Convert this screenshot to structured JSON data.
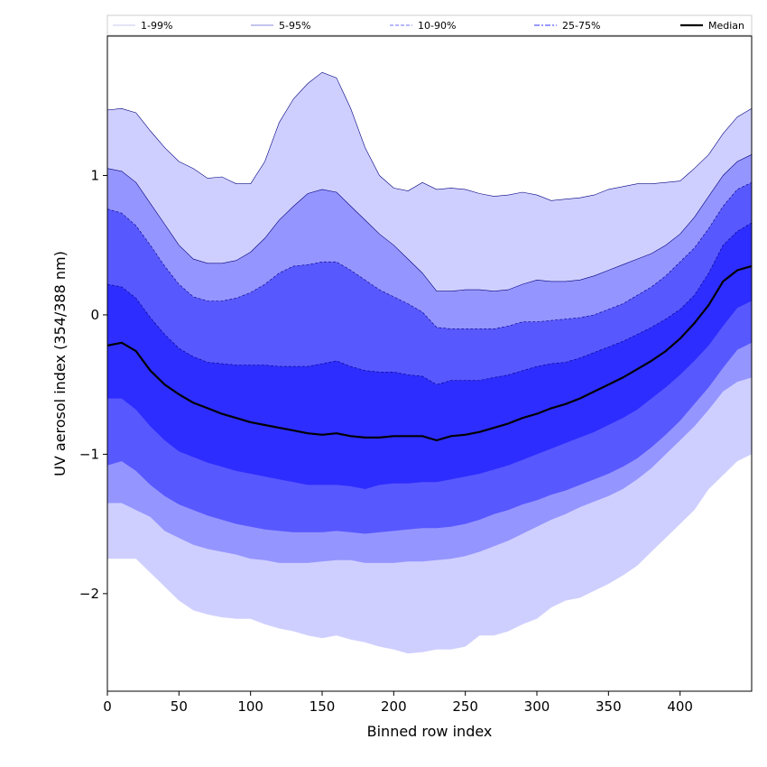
{
  "chart_data": {
    "type": "area",
    "title": "",
    "xlabel": "Binned row index",
    "ylabel": "UV aerosol index (354/388 nm)",
    "xlim": [
      0,
      450
    ],
    "ylim": [
      -2.7,
      2.0
    ],
    "xticks": [
      0,
      50,
      100,
      150,
      200,
      250,
      300,
      350,
      400
    ],
    "yticks": [
      -2,
      -1,
      0,
      1
    ],
    "ytick_labels": [
      "−2",
      "−1",
      "0",
      "1"
    ],
    "grid": false,
    "legend": {
      "placement": "top, above plot",
      "entries": [
        {
          "label": "1-99%",
          "color": "#cfcfff",
          "style": "solid-thin"
        },
        {
          "label": "5-95%",
          "color": "#9a9aff",
          "style": "solid-thin"
        },
        {
          "label": "10-90%",
          "color": "#7070ff",
          "style": "dashed"
        },
        {
          "label": "25-75%",
          "color": "#3030ff",
          "style": "dashdot"
        },
        {
          "label": "Median",
          "color": "#000000",
          "style": "solid-thick"
        }
      ]
    },
    "x": [
      0,
      10,
      20,
      30,
      40,
      50,
      60,
      70,
      80,
      90,
      100,
      110,
      120,
      130,
      140,
      150,
      160,
      170,
      180,
      190,
      200,
      210,
      220,
      230,
      240,
      250,
      260,
      270,
      280,
      290,
      300,
      310,
      320,
      330,
      340,
      350,
      360,
      370,
      380,
      390,
      400,
      410,
      420,
      430,
      440,
      450
    ],
    "bands": [
      {
        "name": "1-99%",
        "color": "#cfcfff",
        "upper": [
          1.47,
          1.48,
          1.45,
          1.32,
          1.2,
          1.1,
          1.05,
          0.98,
          0.99,
          0.94,
          0.94,
          1.1,
          1.38,
          1.55,
          1.66,
          1.74,
          1.7,
          1.48,
          1.2,
          1.0,
          0.91,
          0.89,
          0.95,
          0.9,
          0.91,
          0.9,
          0.87,
          0.85,
          0.86,
          0.88,
          0.86,
          0.82,
          0.83,
          0.84,
          0.86,
          0.9,
          0.92,
          0.94,
          0.94,
          0.95,
          0.96,
          1.05,
          1.15,
          1.3,
          1.42,
          1.48
        ],
        "lower": [
          -1.75,
          -1.75,
          -1.75,
          -1.85,
          -1.95,
          -2.05,
          -2.12,
          -2.15,
          -2.17,
          -2.18,
          -2.18,
          -2.22,
          -2.25,
          -2.27,
          -2.3,
          -2.32,
          -2.3,
          -2.33,
          -2.35,
          -2.38,
          -2.4,
          -2.43,
          -2.42,
          -2.4,
          -2.4,
          -2.38,
          -2.3,
          -2.3,
          -2.27,
          -2.22,
          -2.18,
          -2.1,
          -2.05,
          -2.03,
          -1.98,
          -1.93,
          -1.87,
          -1.8,
          -1.7,
          -1.6,
          -1.5,
          -1.4,
          -1.25,
          -1.15,
          -1.05,
          -1.0
        ]
      },
      {
        "name": "5-95%",
        "color": "#9595ff",
        "upper": [
          1.05,
          1.03,
          0.95,
          0.8,
          0.65,
          0.5,
          0.4,
          0.37,
          0.37,
          0.39,
          0.45,
          0.55,
          0.68,
          0.78,
          0.87,
          0.9,
          0.88,
          0.78,
          0.68,
          0.58,
          0.5,
          0.4,
          0.3,
          0.17,
          0.17,
          0.18,
          0.18,
          0.17,
          0.18,
          0.22,
          0.25,
          0.24,
          0.24,
          0.25,
          0.28,
          0.32,
          0.36,
          0.4,
          0.44,
          0.5,
          0.58,
          0.7,
          0.85,
          1.0,
          1.1,
          1.15
        ],
        "lower": [
          -1.35,
          -1.35,
          -1.4,
          -1.45,
          -1.55,
          -1.6,
          -1.65,
          -1.68,
          -1.7,
          -1.72,
          -1.75,
          -1.76,
          -1.78,
          -1.78,
          -1.78,
          -1.77,
          -1.76,
          -1.76,
          -1.78,
          -1.78,
          -1.78,
          -1.77,
          -1.77,
          -1.76,
          -1.75,
          -1.73,
          -1.7,
          -1.66,
          -1.62,
          -1.57,
          -1.52,
          -1.47,
          -1.43,
          -1.38,
          -1.34,
          -1.3,
          -1.25,
          -1.18,
          -1.1,
          -1.0,
          -0.9,
          -0.8,
          -0.68,
          -0.55,
          -0.48,
          -0.45
        ]
      },
      {
        "name": "10-90%",
        "color": "#5858ff",
        "upper": [
          0.76,
          0.73,
          0.64,
          0.5,
          0.35,
          0.22,
          0.13,
          0.1,
          0.1,
          0.12,
          0.16,
          0.22,
          0.3,
          0.35,
          0.36,
          0.38,
          0.38,
          0.32,
          0.25,
          0.18,
          0.13,
          0.08,
          0.02,
          -0.09,
          -0.1,
          -0.1,
          -0.1,
          -0.1,
          -0.08,
          -0.05,
          -0.05,
          -0.04,
          -0.03,
          -0.02,
          0.0,
          0.04,
          0.08,
          0.14,
          0.2,
          0.28,
          0.38,
          0.48,
          0.62,
          0.78,
          0.9,
          0.95
        ],
        "lower": [
          -1.08,
          -1.05,
          -1.12,
          -1.22,
          -1.3,
          -1.36,
          -1.4,
          -1.44,
          -1.47,
          -1.5,
          -1.52,
          -1.54,
          -1.55,
          -1.56,
          -1.56,
          -1.56,
          -1.55,
          -1.56,
          -1.57,
          -1.56,
          -1.55,
          -1.54,
          -1.53,
          -1.53,
          -1.52,
          -1.5,
          -1.47,
          -1.43,
          -1.4,
          -1.36,
          -1.33,
          -1.29,
          -1.26,
          -1.22,
          -1.18,
          -1.14,
          -1.09,
          -1.03,
          -0.95,
          -0.86,
          -0.76,
          -0.64,
          -0.52,
          -0.38,
          -0.25,
          -0.2
        ]
      },
      {
        "name": "25-75%",
        "color": "#2d2dff",
        "upper": [
          0.22,
          0.2,
          0.12,
          -0.02,
          -0.14,
          -0.24,
          -0.3,
          -0.34,
          -0.35,
          -0.36,
          -0.36,
          -0.36,
          -0.37,
          -0.37,
          -0.37,
          -0.35,
          -0.33,
          -0.37,
          -0.4,
          -0.41,
          -0.41,
          -0.43,
          -0.44,
          -0.5,
          -0.47,
          -0.47,
          -0.47,
          -0.45,
          -0.43,
          -0.4,
          -0.37,
          -0.35,
          -0.34,
          -0.31,
          -0.27,
          -0.23,
          -0.19,
          -0.14,
          -0.09,
          -0.03,
          0.04,
          0.14,
          0.3,
          0.5,
          0.6,
          0.66
        ],
        "lower": [
          -0.6,
          -0.6,
          -0.68,
          -0.8,
          -0.9,
          -0.98,
          -1.02,
          -1.06,
          -1.09,
          -1.12,
          -1.14,
          -1.16,
          -1.18,
          -1.2,
          -1.22,
          -1.22,
          -1.22,
          -1.23,
          -1.25,
          -1.22,
          -1.21,
          -1.21,
          -1.2,
          -1.2,
          -1.18,
          -1.16,
          -1.14,
          -1.11,
          -1.08,
          -1.04,
          -1.0,
          -0.96,
          -0.92,
          -0.88,
          -0.84,
          -0.79,
          -0.74,
          -0.68,
          -0.6,
          -0.52,
          -0.43,
          -0.33,
          -0.22,
          -0.08,
          0.05,
          0.1
        ]
      }
    ],
    "series": [
      {
        "name": "Median",
        "color": "#000000",
        "values": [
          -0.22,
          -0.2,
          -0.26,
          -0.4,
          -0.5,
          -0.57,
          -0.63,
          -0.67,
          -0.71,
          -0.74,
          -0.77,
          -0.79,
          -0.81,
          -0.83,
          -0.85,
          -0.86,
          -0.85,
          -0.87,
          -0.88,
          -0.88,
          -0.87,
          -0.87,
          -0.87,
          -0.9,
          -0.87,
          -0.86,
          -0.84,
          -0.81,
          -0.78,
          -0.74,
          -0.71,
          -0.67,
          -0.64,
          -0.6,
          -0.55,
          -0.5,
          -0.45,
          -0.39,
          -0.33,
          -0.26,
          -0.17,
          -0.06,
          0.07,
          0.24,
          0.32,
          0.35
        ]
      }
    ]
  }
}
